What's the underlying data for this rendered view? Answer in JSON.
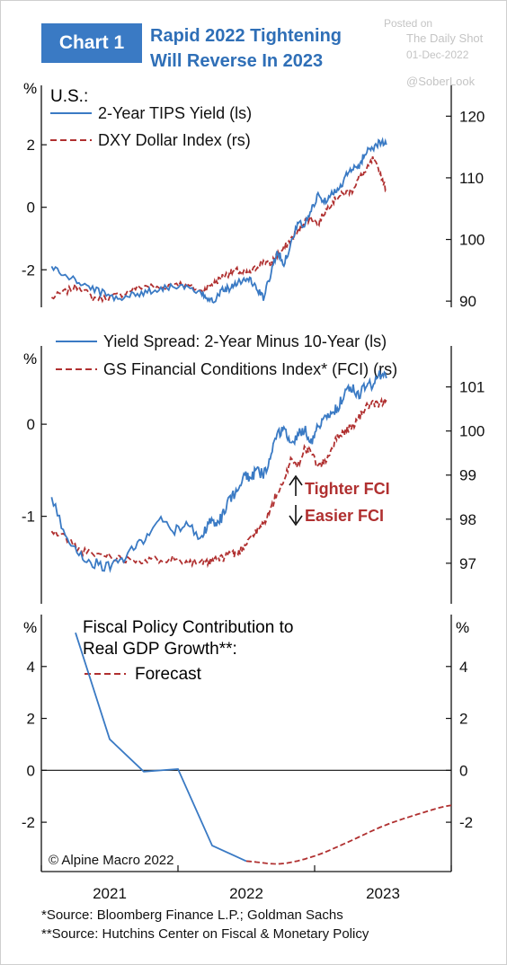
{
  "header": {
    "badge": "Chart 1",
    "title_line1": "Rapid 2022 Tightening",
    "title_line2": "Will Reverse In 2023"
  },
  "watermark": {
    "posted_on": "Posted on",
    "site": "The Daily Shot",
    "date": "01-Dec-2022",
    "handle": "@SoberLook"
  },
  "colors": {
    "blue": "#3a7ac4",
    "red": "#b03030",
    "title_blue": "#2f6fb7",
    "note_red": "#b03030"
  },
  "chart_data": [
    {
      "type": "line",
      "panel_label": "U.S.:",
      "left_axis": {
        "unit": "%",
        "ticks": [
          2,
          0,
          -2
        ],
        "ylim": [
          -3.2,
          3.9
        ]
      },
      "right_axis": {
        "ticks": [
          120,
          110,
          100,
          90
        ],
        "ylim": [
          89,
          125
        ]
      },
      "series": [
        {
          "name": "2-Year TIPS Yield (ls)",
          "axis": "left",
          "style": "solid",
          "x": [
            2020.45,
            2020.55,
            2020.65,
            2020.75,
            2020.85,
            2020.95,
            2021.05,
            2021.15,
            2021.25,
            2021.35,
            2021.45,
            2021.55,
            2021.6,
            2021.65,
            2021.7,
            2021.75,
            2021.8,
            2021.85,
            2021.9,
            2021.95,
            2022.0,
            2022.05,
            2022.1,
            2022.15,
            2022.2,
            2022.25,
            2022.3,
            2022.35,
            2022.4,
            2022.45,
            2022.5,
            2022.55,
            2022.6,
            2022.65,
            2022.7,
            2022.75,
            2022.8,
            2022.85,
            2022.9
          ],
          "values": [
            -1.9,
            -2.2,
            -2.4,
            -2.6,
            -2.8,
            -2.9,
            -2.8,
            -2.7,
            -2.6,
            -2.5,
            -2.6,
            -2.8,
            -2.9,
            -2.95,
            -2.6,
            -2.6,
            -2.4,
            -2.35,
            -2.3,
            -2.6,
            -2.9,
            -2.2,
            -1.4,
            -1.8,
            -1.2,
            -0.5,
            -0.6,
            -0.1,
            0.4,
            0.2,
            0.5,
            0.5,
            1.0,
            1.2,
            1.3,
            1.8,
            1.9,
            2.1,
            2.0
          ]
        },
        {
          "name": "DXY Dollar Index (rs)",
          "axis": "right",
          "style": "dashed",
          "x": [
            2020.45,
            2020.55,
            2020.65,
            2020.75,
            2020.85,
            2020.95,
            2021.05,
            2021.15,
            2021.25,
            2021.35,
            2021.45,
            2021.55,
            2021.6,
            2021.65,
            2021.7,
            2021.75,
            2021.8,
            2021.85,
            2021.9,
            2021.95,
            2022.0,
            2022.05,
            2022.1,
            2022.15,
            2022.2,
            2022.25,
            2022.3,
            2022.35,
            2022.4,
            2022.45,
            2022.5,
            2022.55,
            2022.6,
            2022.65,
            2022.7,
            2022.75,
            2022.8,
            2022.85,
            2022.9
          ],
          "values": [
            90.5,
            91.5,
            92.5,
            90.5,
            90.5,
            91,
            92,
            92.5,
            92,
            93,
            92.5,
            91.5,
            92.5,
            93,
            94,
            94.5,
            95,
            94.5,
            94.5,
            95.5,
            96.5,
            96,
            97.5,
            98.5,
            100,
            101,
            103,
            103.5,
            102.5,
            104.5,
            106,
            107,
            107.5,
            108,
            110,
            111,
            113,
            111,
            108
          ]
        }
      ]
    },
    {
      "type": "line",
      "left_axis": {
        "unit": "%",
        "ticks": [
          0,
          -1
        ],
        "ylim": [
          -1.95,
          0.85
        ]
      },
      "right_axis": {
        "ticks": [
          101,
          100,
          99,
          98,
          97
        ],
        "ylim": [
          96.08,
          101.93
        ]
      },
      "annotations": [
        "Tighter FCI",
        "Easier FCI"
      ],
      "series": [
        {
          "name": "Yield Spread: 2-Year Minus 10-Year (ls)",
          "axis": "left",
          "style": "solid",
          "x": [
            2020.45,
            2020.55,
            2020.65,
            2020.75,
            2020.85,
            2020.95,
            2021.05,
            2021.15,
            2021.25,
            2021.35,
            2021.45,
            2021.55,
            2021.6,
            2021.65,
            2021.7,
            2021.75,
            2021.8,
            2021.85,
            2021.9,
            2021.95,
            2022.0,
            2022.05,
            2022.1,
            2022.15,
            2022.2,
            2022.25,
            2022.3,
            2022.35,
            2022.4,
            2022.45,
            2022.5,
            2022.55,
            2022.6,
            2022.65,
            2022.7,
            2022.75,
            2022.8,
            2022.85,
            2022.9
          ],
          "values": [
            -0.8,
            -1.2,
            -1.4,
            -1.5,
            -1.55,
            -1.5,
            -1.35,
            -1.2,
            -1.05,
            -1.15,
            -1.1,
            -1.25,
            -1.05,
            -1.1,
            -1.0,
            -0.8,
            -0.75,
            -0.55,
            -0.6,
            -0.5,
            -0.55,
            -0.35,
            -0.15,
            0.0,
            -0.25,
            -0.1,
            -0.05,
            -0.2,
            0.0,
            0.05,
            0.1,
            0.2,
            0.35,
            0.4,
            0.3,
            0.45,
            0.4,
            0.55,
            0.5
          ]
        },
        {
          "name": "GS Financial Conditions Index* (FCI) (rs)",
          "axis": "right",
          "style": "dashed",
          "x": [
            2020.45,
            2020.55,
            2020.65,
            2020.75,
            2020.85,
            2020.95,
            2021.05,
            2021.15,
            2021.25,
            2021.35,
            2021.45,
            2021.55,
            2021.6,
            2021.65,
            2021.7,
            2021.75,
            2021.8,
            2021.85,
            2021.9,
            2021.95,
            2022.0,
            2022.05,
            2022.1,
            2022.15,
            2022.2,
            2022.25,
            2022.3,
            2022.35,
            2022.4,
            2022.45,
            2022.5,
            2022.55,
            2022.6,
            2022.65,
            2022.7,
            2022.75,
            2022.8,
            2022.85,
            2022.9
          ],
          "values": [
            97.7,
            97.6,
            97.3,
            97.2,
            97.2,
            97.1,
            97.1,
            97.05,
            97.1,
            97.1,
            97.05,
            97.0,
            97.0,
            97.1,
            97.1,
            97.25,
            97.2,
            97.35,
            97.6,
            97.7,
            97.9,
            98.2,
            98.6,
            98.8,
            99.4,
            99.2,
            99.6,
            99.5,
            99.2,
            99.3,
            99.6,
            99.9,
            100.0,
            100.1,
            100.3,
            100.55,
            100.6,
            100.6,
            100.7
          ]
        }
      ]
    },
    {
      "type": "line",
      "title_line1": "Fiscal Policy Contribution to",
      "title_line2": "Real GDP Growth**:",
      "left_axis": {
        "unit": "%",
        "ticks": [
          4,
          2,
          0,
          -2
        ],
        "ylim": [
          -3.9,
          6
        ]
      },
      "right_axis": {
        "unit": "%",
        "ticks": [
          4,
          2,
          0,
          -2
        ],
        "ylim": [
          -3.9,
          6
        ]
      },
      "x_axis": {
        "ticks": [
          "2021",
          "2022",
          "2023"
        ]
      },
      "copyright": "© Alpine Macro 2022",
      "series": [
        {
          "name": "",
          "style": "solid",
          "x": [
            2020.625,
            2020.875,
            2021.125,
            2021.375,
            2021.625,
            2021.875
          ],
          "values": [
            5.3,
            1.2,
            -0.05,
            0.05,
            -2.9,
            -3.5
          ]
        },
        {
          "name": "Forecast",
          "style": "dashed",
          "x": [
            2021.875,
            2022.125,
            2022.375,
            2022.625,
            2022.875,
            2023.125,
            2023.375
          ],
          "values": [
            -3.5,
            -3.6,
            -3.3,
            -2.75,
            -2.15,
            -1.7,
            -1.35
          ]
        }
      ]
    }
  ],
  "sources": {
    "line1": "*Source: Bloomberg Finance L.P.; Goldman Sachs",
    "line2": "**Source: Hutchins Center on Fiscal & Monetary Policy"
  }
}
